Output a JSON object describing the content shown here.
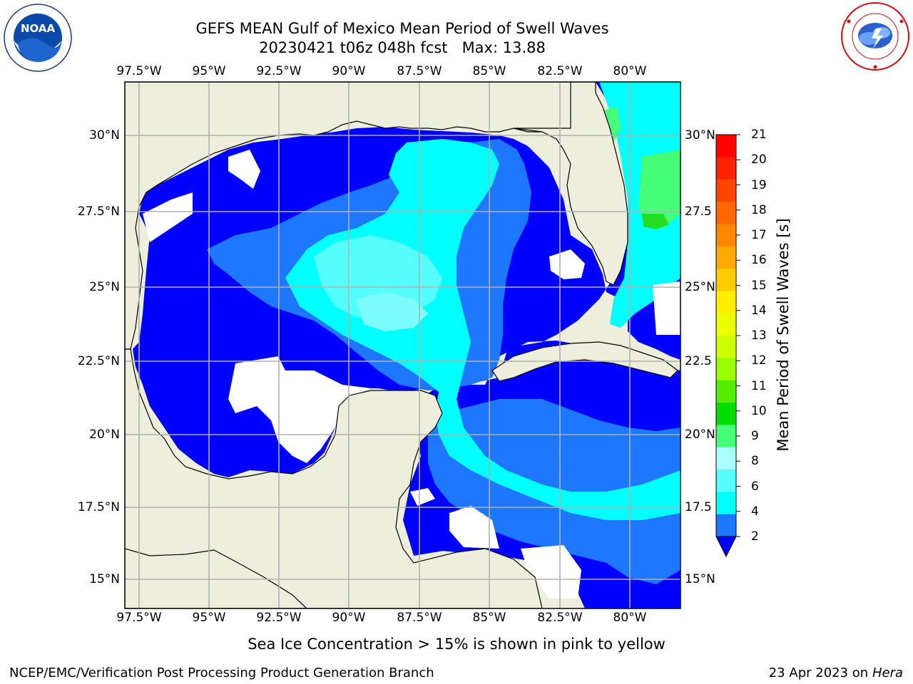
{
  "header": {
    "title_line1": "GEFS MEAN Gulf of Mexico Mean Period of Swell Waves",
    "title_line2": "20230421 t06z 048h fcst   Max: 13.88"
  },
  "logos": {
    "left": "noaa-logo",
    "right": "nws-logo"
  },
  "map": {
    "lon_ticks": [
      "97.5°W",
      "95°W",
      "92.5°W",
      "90°W",
      "87.5°W",
      "85°W",
      "82.5°W",
      "80°W"
    ],
    "lat_ticks_left": [
      "30°N",
      "27.5°N",
      "25°N",
      "22.5°N",
      "20°N",
      "17.5°N",
      "15°N"
    ],
    "lat_ticks_right": [
      "30°N",
      "27.5",
      "25°N",
      "22.5",
      "20°N",
      "17.5",
      "15°N"
    ],
    "land_color": "#eeeedd",
    "ocean_colors": {
      "2-4": "#0000ff",
      "4-6": "#1e78ff",
      "6-8": "#00ffff",
      "8-9": "#7cfcfc",
      "9-10": "#33ff66",
      "12-13": "#ccff00",
      "13-14": "#e8ff33"
    }
  },
  "colorbar": {
    "label": "Mean Period of Swell Waves [s]",
    "ticks": [
      "21",
      "20",
      "19",
      "18",
      "17",
      "16",
      "15",
      "14",
      "13",
      "12",
      "11",
      "10",
      "9",
      "8",
      "6",
      "4",
      "2"
    ],
    "colors": [
      "#ff0000",
      "#ff2200",
      "#ff4400",
      "#ff6600",
      "#ff8800",
      "#ffaa00",
      "#ffcc00",
      "#ffee00",
      "#eeff00",
      "#ccff00",
      "#99ff00",
      "#55ee00",
      "#00dd00",
      "#44ff77",
      "#aaffff",
      "#55ffff",
      "#00ffff",
      "#1e78ff"
    ],
    "extend_color": "#0000ff"
  },
  "notes": {
    "sea_ice": "Sea Ice Concentration > 15% is shown in pink to yellow",
    "footer_left": "NCEP/EMC/Verification Post Processing Product Generation Branch",
    "footer_right_prefix": "23 Apr 2023 on ",
    "footer_right_host": "Hera"
  }
}
